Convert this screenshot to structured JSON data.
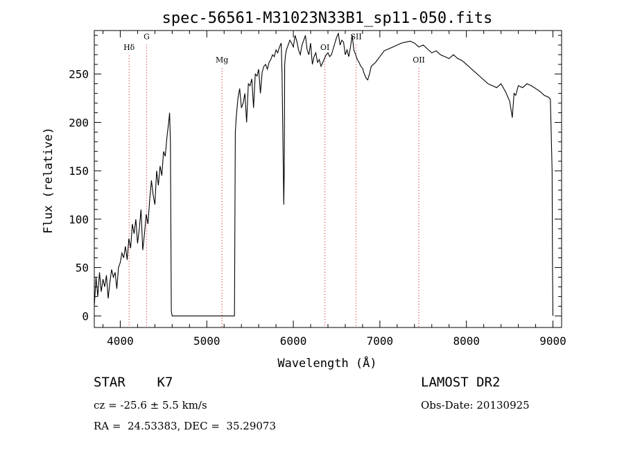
{
  "chart_data": {
    "type": "line",
    "title": "spec-56561-M31023N33B1_sp11-050.fits",
    "xlabel": "Wavelength (Å)",
    "ylabel": "Flux (relative)",
    "xlim": [
      3700,
      9100
    ],
    "ylim": [
      -12,
      295
    ],
    "xticks": [
      4000,
      5000,
      6000,
      7000,
      8000,
      9000
    ],
    "yticks": [
      0,
      50,
      100,
      150,
      200,
      250
    ],
    "grid": false,
    "line_color": "#000000",
    "annotation_color": "#cc0000",
    "series": [
      {
        "x": [
          3700,
          3720,
          3740,
          3760,
          3780,
          3800,
          3820,
          3840,
          3860,
          3880,
          3900,
          3920,
          3940,
          3960,
          3980,
          4000,
          4020,
          4040,
          4060,
          4080,
          4100,
          4120,
          4140,
          4160,
          4180,
          4200,
          4220,
          4240,
          4260,
          4280,
          4300,
          4320,
          4340,
          4360,
          4380,
          4400,
          4420,
          4440,
          4460,
          4480,
          4500,
          4520,
          4540,
          4560,
          4570,
          4580,
          4590,
          4600,
          5300,
          5320,
          5330,
          5340,
          5360,
          5380,
          5400,
          5420,
          5440,
          5460,
          5480,
          5500,
          5520,
          5540,
          5560,
          5580,
          5600,
          5620,
          5640,
          5660,
          5680,
          5700,
          5720,
          5740,
          5760,
          5780,
          5800,
          5820,
          5840,
          5860,
          5870,
          5880,
          5890,
          5895,
          5900,
          5910,
          5920,
          5940,
          5960,
          5980,
          6000,
          6020,
          6040,
          6060,
          6080,
          6100,
          6120,
          6140,
          6160,
          6180,
          6200,
          6220,
          6240,
          6260,
          6280,
          6300,
          6320,
          6340,
          6360,
          6380,
          6400,
          6420,
          6440,
          6460,
          6480,
          6500,
          6520,
          6540,
          6560,
          6580,
          6600,
          6620,
          6640,
          6660,
          6680,
          6700,
          6720,
          6740,
          6760,
          6780,
          6800,
          6820,
          6840,
          6860,
          6880,
          6900,
          6950,
          7000,
          7050,
          7100,
          7150,
          7200,
          7250,
          7300,
          7350,
          7400,
          7450,
          7500,
          7550,
          7600,
          7650,
          7700,
          7750,
          7800,
          7850,
          7900,
          7950,
          8000,
          8050,
          8100,
          8150,
          8200,
          8250,
          8300,
          8350,
          8400,
          8450,
          8500,
          8530,
          8550,
          8570,
          8600,
          8650,
          8700,
          8750,
          8800,
          8850,
          8900,
          8950,
          8970,
          8980,
          8990,
          8995,
          9000
        ],
        "y": [
          10,
          40,
          20,
          45,
          25,
          38,
          30,
          42,
          18,
          35,
          48,
          40,
          45,
          28,
          50,
          55,
          65,
          60,
          72,
          58,
          80,
          70,
          95,
          85,
          100,
          75,
          90,
          110,
          68,
          85,
          105,
          95,
          120,
          140,
          125,
          115,
          150,
          135,
          155,
          145,
          170,
          165,
          185,
          200,
          210,
          180,
          5,
          0,
          0,
          0,
          190,
          205,
          225,
          235,
          215,
          220,
          230,
          200,
          240,
          238,
          245,
          215,
          250,
          248,
          255,
          230,
          252,
          258,
          260,
          255,
          262,
          265,
          270,
          268,
          275,
          272,
          278,
          282,
          250,
          180,
          115,
          150,
          260,
          270,
          275,
          280,
          285,
          282,
          278,
          290,
          284,
          275,
          270,
          280,
          285,
          290,
          275,
          270,
          282,
          260,
          268,
          272,
          262,
          265,
          258,
          262,
          266,
          270,
          272,
          268,
          270,
          276,
          282,
          288,
          292,
          280,
          285,
          283,
          270,
          275,
          268,
          278,
          290,
          275,
          270,
          265,
          262,
          258,
          256,
          250,
          246,
          244,
          250,
          258,
          262,
          268,
          274,
          276,
          278,
          280,
          282,
          283,
          284,
          282,
          278,
          280,
          276,
          272,
          274,
          270,
          268,
          266,
          270,
          266,
          264,
          260,
          256,
          252,
          248,
          244,
          240,
          238,
          236,
          240,
          232,
          222,
          205,
          230,
          228,
          238,
          236,
          240,
          238,
          235,
          232,
          228,
          226,
          224,
          190,
          150,
          50,
          0
        ]
      }
    ],
    "line_markers": [
      {
        "label": "Hδ",
        "x": 4102,
        "label_y": 275
      },
      {
        "label": "G",
        "x": 4305,
        "label_y": 286
      },
      {
        "label": "Mg",
        "x": 5175,
        "label_y": 262
      },
      {
        "label": "OI",
        "x": 6365,
        "label_y": 275
      },
      {
        "label": "SII",
        "x": 6725,
        "label_y": 286
      },
      {
        "label": "OII",
        "x": 7450,
        "label_y": 262
      }
    ]
  },
  "info": {
    "class_line": "STAR    K7",
    "survey": "LAMOST DR2",
    "redshift_line": "cz = -25.6 ± 5.5 km/s",
    "obs_date": "Obs-Date: 20130925",
    "coords_line": "RA =  24.53383, DEC =  35.29073"
  }
}
